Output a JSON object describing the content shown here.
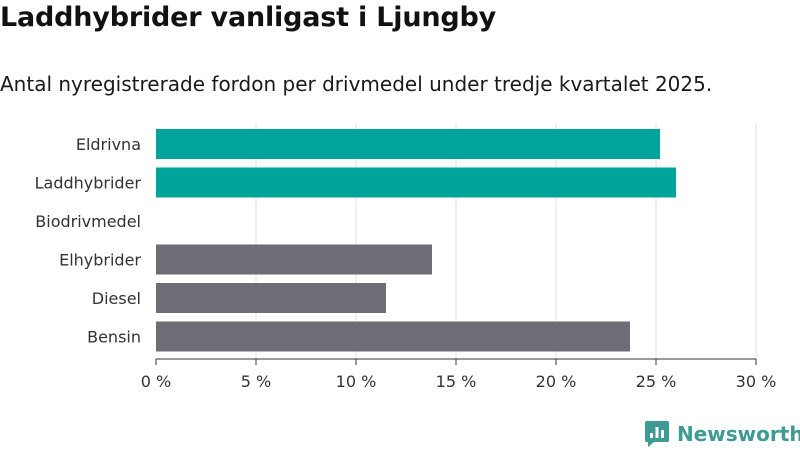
{
  "title": "Laddhybrider vanligast i Ljungby",
  "subtitle": "Antal nyregistrerade fordon per drivmedel under tredje kvartalet 2025.",
  "brand": {
    "name": "Newsworthy",
    "icon": "newsworthy-logo-icon"
  },
  "colors": {
    "highlight": "#00a49a",
    "other": "#6e6d75",
    "grid": "#e2e2e2",
    "axis": "#333333"
  },
  "chart_data": {
    "type": "bar",
    "orientation": "horizontal",
    "categories": [
      "Eldrivna",
      "Laddhybrider",
      "Biodrivmedel",
      "Elhybrider",
      "Diesel",
      "Bensin"
    ],
    "values": [
      25.2,
      26.0,
      0,
      13.8,
      11.5,
      23.7
    ],
    "highlighted": [
      true,
      true,
      false,
      false,
      false,
      false
    ],
    "x_ticks": [
      0,
      5,
      10,
      15,
      20,
      25,
      30
    ],
    "x_tick_labels": [
      "0 %",
      "5 %",
      "10 %",
      "15 %",
      "20 %",
      "25 %",
      "30 %"
    ],
    "xlim": [
      0,
      30
    ],
    "grid": true,
    "legend": "none"
  }
}
